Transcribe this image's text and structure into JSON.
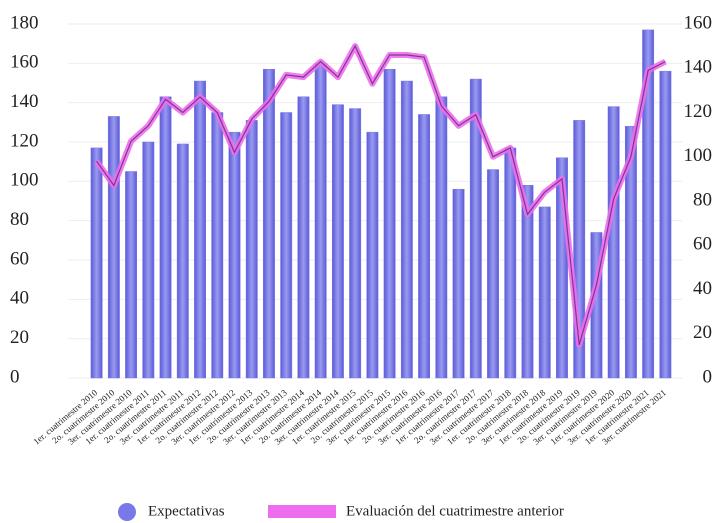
{
  "chart_data": {
    "type": "bar-line",
    "categories": [
      "1er. cuatrimestre 2010",
      "2o. cuatrimestre 2010",
      "3er. cuatrimestre 2010",
      "1er. cuatrimestre 2011",
      "2o. cuatrimestre 2011",
      "3er. cuatrimestre 2011",
      "1er. cuatrimestre 2012",
      "2o. cuatrimestre 2012",
      "3er. cuatrimestre 2012",
      "1er. cuatrimestre 2013",
      "2o. cuatrimestre 2013",
      "3er. cuatrimestre 2013",
      "1er. cuatrimestre 2014",
      "2o. cuatrimestre 2014",
      "3er. cuatrimestre 2014",
      "1er. cuatrimestre 2015",
      "2o. cuatrimestre 2015",
      "3er. cuatrimestre 2015",
      "1er. cuatrimestre 2016",
      "2o. cuatrimestre 2016",
      "3er. cuatrimestre 2016",
      "1er. cuatrimestre 2017",
      "2o. cuatrimestre 2017",
      "3er. cuatrimestre 2017",
      "1er. cuatrimestre 2018",
      "2o. cuatrimestre 2018",
      "3er. cuatrimestre 2018",
      "1er. cuatrimestre 2019",
      "2o. cuatrimestre 2019",
      "3er. cuatrimestre 2019",
      "1er. cuatrimestre 2020",
      "3er. cuatrimestre 2020",
      "1er. cuatrimestre 2021",
      "3er. cuatrimestre 2021"
    ],
    "series": [
      {
        "name": "Expectativas",
        "color": "#7878e6",
        "axis": "y",
        "values": [
          117,
          133,
          105,
          120,
          143,
          119,
          151,
          135,
          125,
          131,
          157,
          135,
          143,
          160,
          139,
          137,
          125,
          157,
          151,
          134,
          143,
          96,
          152,
          106,
          117,
          98,
          87,
          112,
          131,
          74,
          138,
          128,
          177,
          156
        ]
      },
      {
        "name": "Evaluación del cuatrimestre anterior",
        "color": "#ee6cee",
        "axis": "y2",
        "values": [
          98,
          87,
          107,
          114,
          126,
          120,
          127,
          120,
          102,
          117,
          125,
          137,
          136,
          143,
          136,
          150,
          133,
          146,
          146,
          145,
          123,
          114,
          119,
          100,
          104,
          74,
          84,
          90,
          15,
          42,
          81,
          100,
          139,
          143
        ]
      }
    ],
    "ylim": [
      0,
      180
    ],
    "yticks": [
      0,
      20,
      40,
      60,
      80,
      100,
      120,
      140,
      160,
      180
    ],
    "y2lim": [
      0,
      160
    ],
    "y2ticks": [
      0,
      20,
      40,
      60,
      80,
      100,
      120,
      140,
      160
    ],
    "grid": true,
    "legend": "bottom"
  }
}
